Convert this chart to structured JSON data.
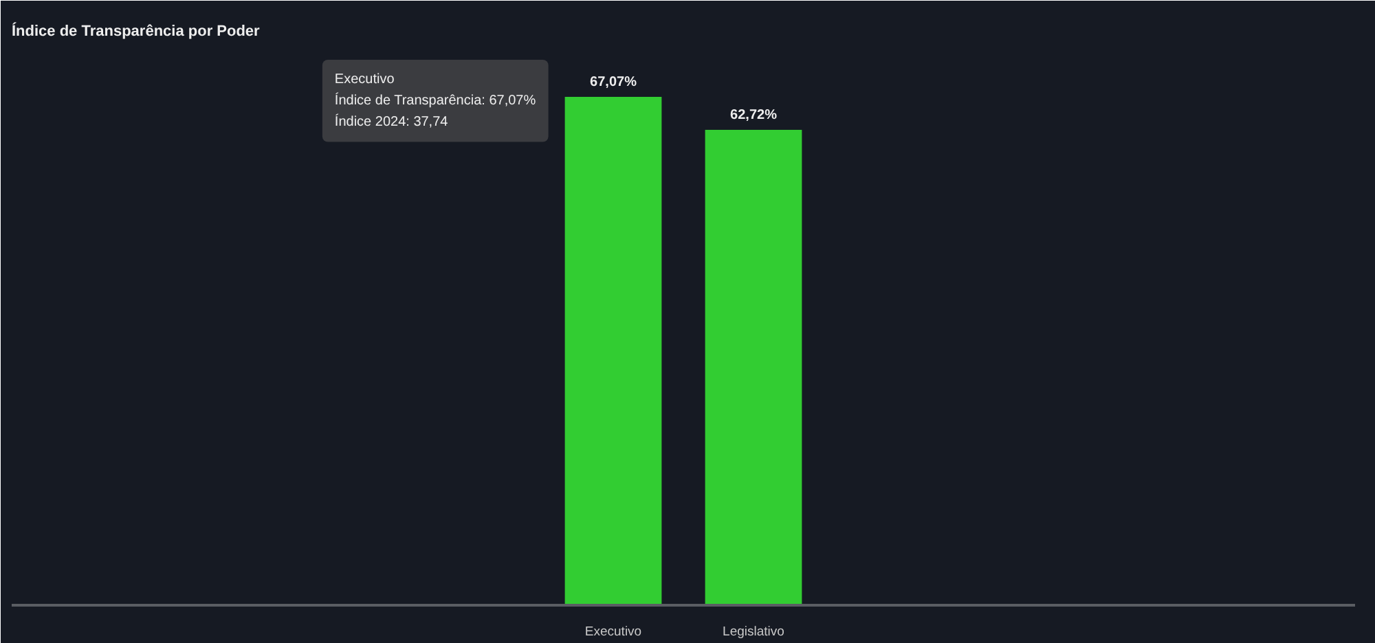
{
  "chart_data": {
    "type": "bar",
    "title": "Índice de Transparência por Poder",
    "categories": [
      "Executivo",
      "Legislativo"
    ],
    "values": [
      67.07,
      62.72
    ],
    "color": "#32cd32",
    "value_labels": [
      "67,07%",
      "62,72%"
    ],
    "annotations": [
      "Executivo\nÍndice de Transparência: 67,07%\nÍndice 2024: 37,74"
    ]
  }
}
